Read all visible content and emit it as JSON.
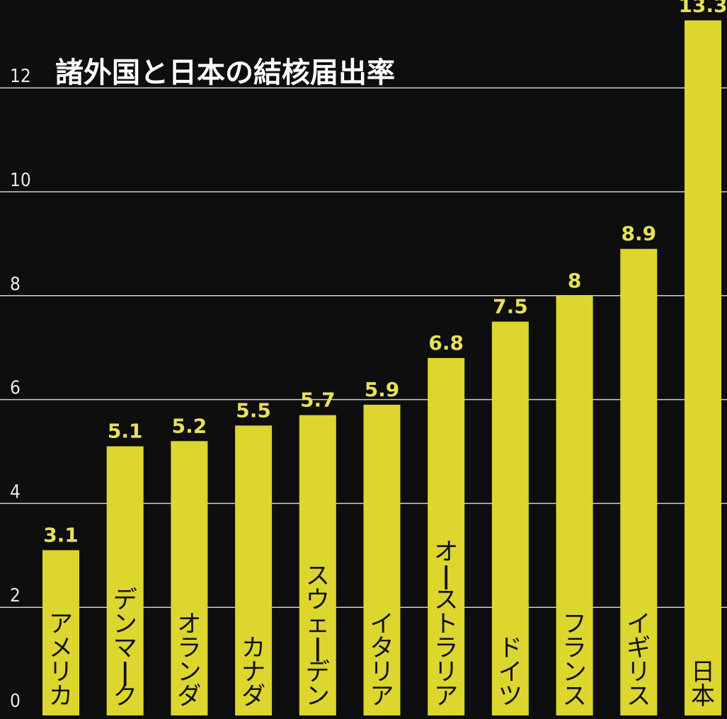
{
  "chart_data": {
    "type": "bar",
    "title": "諸外国と日本の結核届出率",
    "categories": [
      "アメリカ",
      "デンマーク",
      "オランダ",
      "カナダ",
      "スウェーデン",
      "イタリア",
      "オーストラリア",
      "ドイツ",
      "フランス",
      "イギリス",
      "日本"
    ],
    "values": [
      3.1,
      5.1,
      5.2,
      5.5,
      5.7,
      5.9,
      6.8,
      7.5,
      8,
      8.9,
      13.3
    ],
    "value_labels": [
      "3.1",
      "5.1",
      "5.2",
      "5.5",
      "5.7",
      "5.9",
      "6.8",
      "7.5",
      "8",
      "8.9",
      "13.3"
    ],
    "y_ticks": [
      0,
      2,
      4,
      6,
      8,
      10,
      12
    ],
    "y_tick_labels": [
      "0",
      "2",
      "4",
      "6",
      "8",
      "10",
      "12"
    ],
    "ylim": [
      0,
      13.3
    ],
    "xlabel": "",
    "ylabel": "",
    "grid": true,
    "legend": "none",
    "colors": {
      "background": "#0e0e0e",
      "bar": "#ddd62e",
      "grid": "#cfcfcf",
      "value_label": "#e8e05a",
      "tick_label": "#e8e8e8",
      "category_text": "#111111",
      "title": "#ffffff"
    }
  }
}
